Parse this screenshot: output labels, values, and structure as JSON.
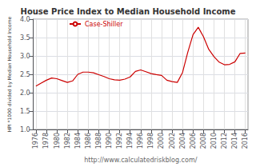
{
  "chart_data": {
    "type": "line",
    "title": "House Price Index to Median Household Income",
    "xlabel": "http://www.calculatedriskblog.com/",
    "ylabel": "HPI *1000 divided by Median Household Income",
    "x": [
      1976,
      1977,
      1978,
      1979,
      1980,
      1981,
      1982,
      1983,
      1984,
      1985,
      1986,
      1987,
      1988,
      1989,
      1990,
      1991,
      1992,
      1993,
      1994,
      1995,
      1996,
      1997,
      1998,
      1999,
      2000,
      2001,
      2002,
      2003,
      2004,
      2005,
      2006,
      2007,
      2008,
      2009,
      2010,
      2011,
      2012,
      2013,
      2014,
      2015,
      2016
    ],
    "series": [
      {
        "name": "Case-Shiller",
        "color": "#cc0000",
        "values": [
          2.18,
          2.26,
          2.34,
          2.4,
          2.38,
          2.33,
          2.28,
          2.32,
          2.5,
          2.56,
          2.56,
          2.54,
          2.49,
          2.44,
          2.38,
          2.35,
          2.34,
          2.37,
          2.43,
          2.58,
          2.62,
          2.57,
          2.52,
          2.49,
          2.47,
          2.34,
          2.3,
          2.28,
          2.55,
          3.1,
          3.58,
          3.78,
          3.52,
          3.18,
          2.98,
          2.83,
          2.76,
          2.77,
          2.84,
          3.07,
          3.08
        ]
      }
    ],
    "xlim": [
      1975.5,
      2016.5
    ],
    "xticks": [
      1976,
      1978,
      1980,
      1982,
      1984,
      1986,
      1988,
      1990,
      1992,
      1994,
      1996,
      1998,
      2000,
      2002,
      2004,
      2006,
      2008,
      2010,
      2012,
      2014,
      2016
    ],
    "ylim": [
      1.0,
      4.0
    ],
    "yticks": [
      {
        "value": 1.0,
        "label": "1.0"
      },
      {
        "value": 1.5,
        "label": "1.5"
      },
      {
        "value": 2.0,
        "label": "2.0"
      },
      {
        "value": 2.5,
        "label": "2.5"
      },
      {
        "value": 3.0,
        "label": "3.0"
      },
      {
        "value": 3.5,
        "label": "3.5"
      },
      {
        "value": 4.0,
        "label": "4.0"
      }
    ],
    "grid": true,
    "legend": "upper left"
  }
}
